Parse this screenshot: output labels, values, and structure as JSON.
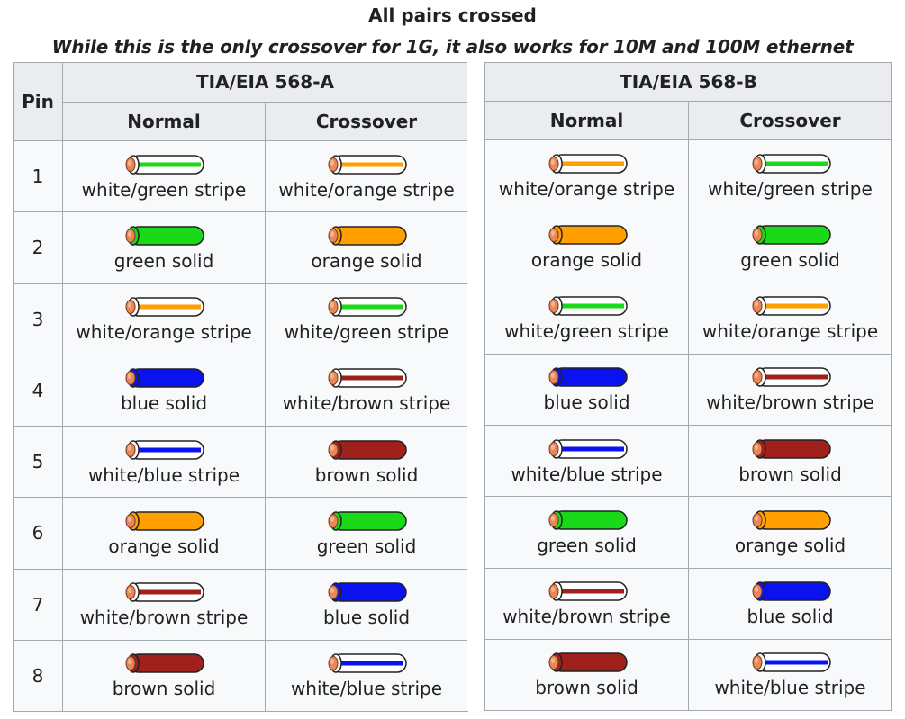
{
  "title": "All pairs crossed",
  "subtitle": "While this is the only crossover for 1G, it also works for 10M and 100M ethernet",
  "headers": {
    "pin": "Pin",
    "a": "TIA/EIA 568-A",
    "b": "TIA/EIA 568-B",
    "normal": "Normal",
    "crossover": "Crossover"
  },
  "colors": {
    "green": "#19d919",
    "orange": "#ff9f00",
    "blue": "#0a12f2",
    "brown": "#a0211b",
    "white": "#ffffff",
    "copper": "#e8875a"
  },
  "rows": [
    {
      "pin": "1",
      "a_normal": {
        "label": "white/green stripe",
        "color": "green",
        "stripe": true
      },
      "a_cross": {
        "label": "white/orange stripe",
        "color": "orange",
        "stripe": true
      },
      "b_normal": {
        "label": "white/orange stripe",
        "color": "orange",
        "stripe": true
      },
      "b_cross": {
        "label": "white/green stripe",
        "color": "green",
        "stripe": true
      }
    },
    {
      "pin": "2",
      "a_normal": {
        "label": "green solid",
        "color": "green",
        "stripe": false
      },
      "a_cross": {
        "label": "orange solid",
        "color": "orange",
        "stripe": false
      },
      "b_normal": {
        "label": "orange solid",
        "color": "orange",
        "stripe": false
      },
      "b_cross": {
        "label": "green solid",
        "color": "green",
        "stripe": false
      }
    },
    {
      "pin": "3",
      "a_normal": {
        "label": "white/orange stripe",
        "color": "orange",
        "stripe": true
      },
      "a_cross": {
        "label": "white/green stripe",
        "color": "green",
        "stripe": true
      },
      "b_normal": {
        "label": "white/green stripe",
        "color": "green",
        "stripe": true
      },
      "b_cross": {
        "label": "white/orange stripe",
        "color": "orange",
        "stripe": true
      }
    },
    {
      "pin": "4",
      "a_normal": {
        "label": "blue solid",
        "color": "blue",
        "stripe": false
      },
      "a_cross": {
        "label": "white/brown stripe",
        "color": "brown",
        "stripe": true
      },
      "b_normal": {
        "label": "blue solid",
        "color": "blue",
        "stripe": false
      },
      "b_cross": {
        "label": "white/brown stripe",
        "color": "brown",
        "stripe": true
      }
    },
    {
      "pin": "5",
      "a_normal": {
        "label": "white/blue stripe",
        "color": "blue",
        "stripe": true
      },
      "a_cross": {
        "label": "brown solid",
        "color": "brown",
        "stripe": false
      },
      "b_normal": {
        "label": "white/blue stripe",
        "color": "blue",
        "stripe": true
      },
      "b_cross": {
        "label": "brown solid",
        "color": "brown",
        "stripe": false
      }
    },
    {
      "pin": "6",
      "a_normal": {
        "label": "orange solid",
        "color": "orange",
        "stripe": false
      },
      "a_cross": {
        "label": "green solid",
        "color": "green",
        "stripe": false
      },
      "b_normal": {
        "label": "green solid",
        "color": "green",
        "stripe": false
      },
      "b_cross": {
        "label": "orange solid",
        "color": "orange",
        "stripe": false
      }
    },
    {
      "pin": "7",
      "a_normal": {
        "label": "white/brown stripe",
        "color": "brown",
        "stripe": true
      },
      "a_cross": {
        "label": "blue solid",
        "color": "blue",
        "stripe": false
      },
      "b_normal": {
        "label": "white/brown stripe",
        "color": "brown",
        "stripe": true
      },
      "b_cross": {
        "label": "blue solid",
        "color": "blue",
        "stripe": false
      }
    },
    {
      "pin": "8",
      "a_normal": {
        "label": "brown solid",
        "color": "brown",
        "stripe": false
      },
      "a_cross": {
        "label": "white/blue stripe",
        "color": "blue",
        "stripe": true
      },
      "b_normal": {
        "label": "brown solid",
        "color": "brown",
        "stripe": false
      },
      "b_cross": {
        "label": "white/blue stripe",
        "color": "blue",
        "stripe": true
      }
    }
  ]
}
